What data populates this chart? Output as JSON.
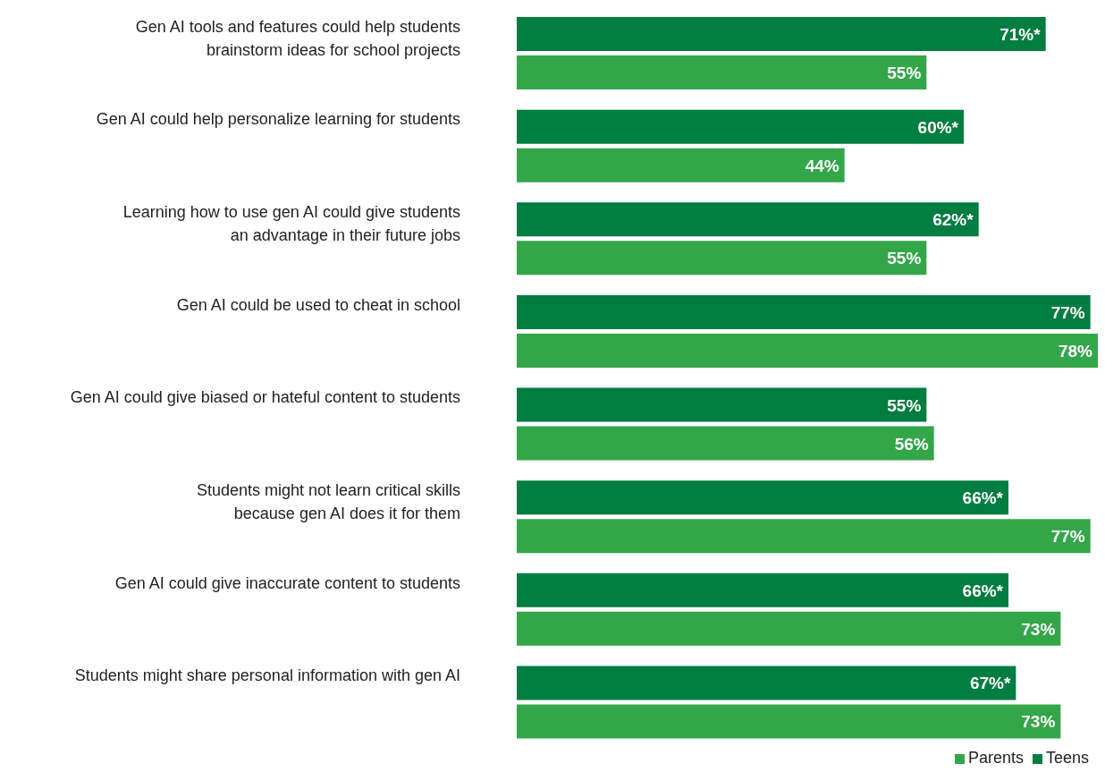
{
  "chart_data": {
    "type": "bar",
    "orientation": "horizontal",
    "categories": [
      "Gen AI tools and features could help students\nbrainstorm ideas for school projects",
      "Gen AI could help personalize learning for students",
      "Learning how to use gen AI could give students\nan advantage in their future jobs",
      "Gen AI could be used to cheat in school",
      "Gen AI could give biased or hateful content to students",
      "Students might not learn critical skills\nbecause gen AI does it for them",
      "Gen AI could give inaccurate content to students",
      "Students might share personal information with gen AI"
    ],
    "series": [
      {
        "name": "Teens",
        "color": "#007d40",
        "values": [
          71,
          60,
          62,
          77,
          55,
          66,
          66,
          67
        ],
        "value_labels": [
          "71%*",
          "60%*",
          "62%*",
          "77%",
          "55%",
          "66%*",
          "66%*",
          "67%*"
        ]
      },
      {
        "name": "Parents",
        "color": "#33a64a",
        "values": [
          55,
          44,
          55,
          78,
          56,
          77,
          73,
          73
        ],
        "value_labels": [
          "55%",
          "44%",
          "55%",
          "78%",
          "56%",
          "77%",
          "73%",
          "73%"
        ]
      }
    ],
    "legend": "bottom right"
  }
}
